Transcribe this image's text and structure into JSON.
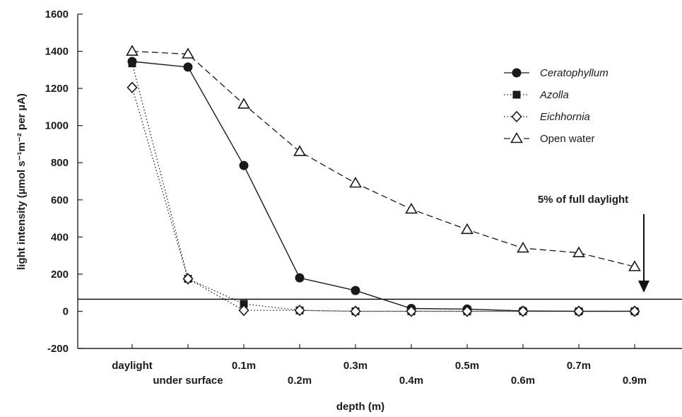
{
  "chart_data": {
    "type": "line",
    "xlabel": "depth (m)",
    "ylabel": "light intensity (µmol s⁻¹m⁻² per µA)",
    "ylim": [
      -200,
      1600
    ],
    "yticks": [
      -200,
      0,
      200,
      400,
      600,
      800,
      1000,
      1200,
      1400,
      1600
    ],
    "categories": [
      "daylight",
      "under surface",
      "0.1m",
      "0.2m",
      "0.3m",
      "0.4m",
      "0.5m",
      "0.6m",
      "0.7m",
      "0.9m"
    ],
    "grid": false,
    "legend_position": "top-right",
    "series": [
      {
        "name": "Ceratophyllum",
        "italic": true,
        "marker": "circle-filled",
        "line": "solid",
        "values": [
          1345,
          1315,
          785,
          180,
          112,
          15,
          12,
          2,
          0,
          0
        ]
      },
      {
        "name": "Azolla",
        "italic": true,
        "marker": "square-filled",
        "line": "dotted",
        "values": [
          1335,
          175,
          40,
          5,
          0,
          0,
          0,
          0,
          0,
          0
        ]
      },
      {
        "name": "Eichhornia",
        "italic": true,
        "marker": "diamond-open",
        "line": "dotted",
        "values": [
          1205,
          175,
          5,
          5,
          0,
          0,
          0,
          0,
          0,
          0
        ]
      },
      {
        "name": "Open water",
        "italic": false,
        "marker": "triangle-open",
        "line": "dashed",
        "values": [
          1400,
          1385,
          1115,
          860,
          690,
          550,
          440,
          340,
          315,
          240
        ]
      }
    ],
    "reference_line": {
      "value": 65
    },
    "annotation": {
      "text": "5% of full daylight"
    }
  }
}
